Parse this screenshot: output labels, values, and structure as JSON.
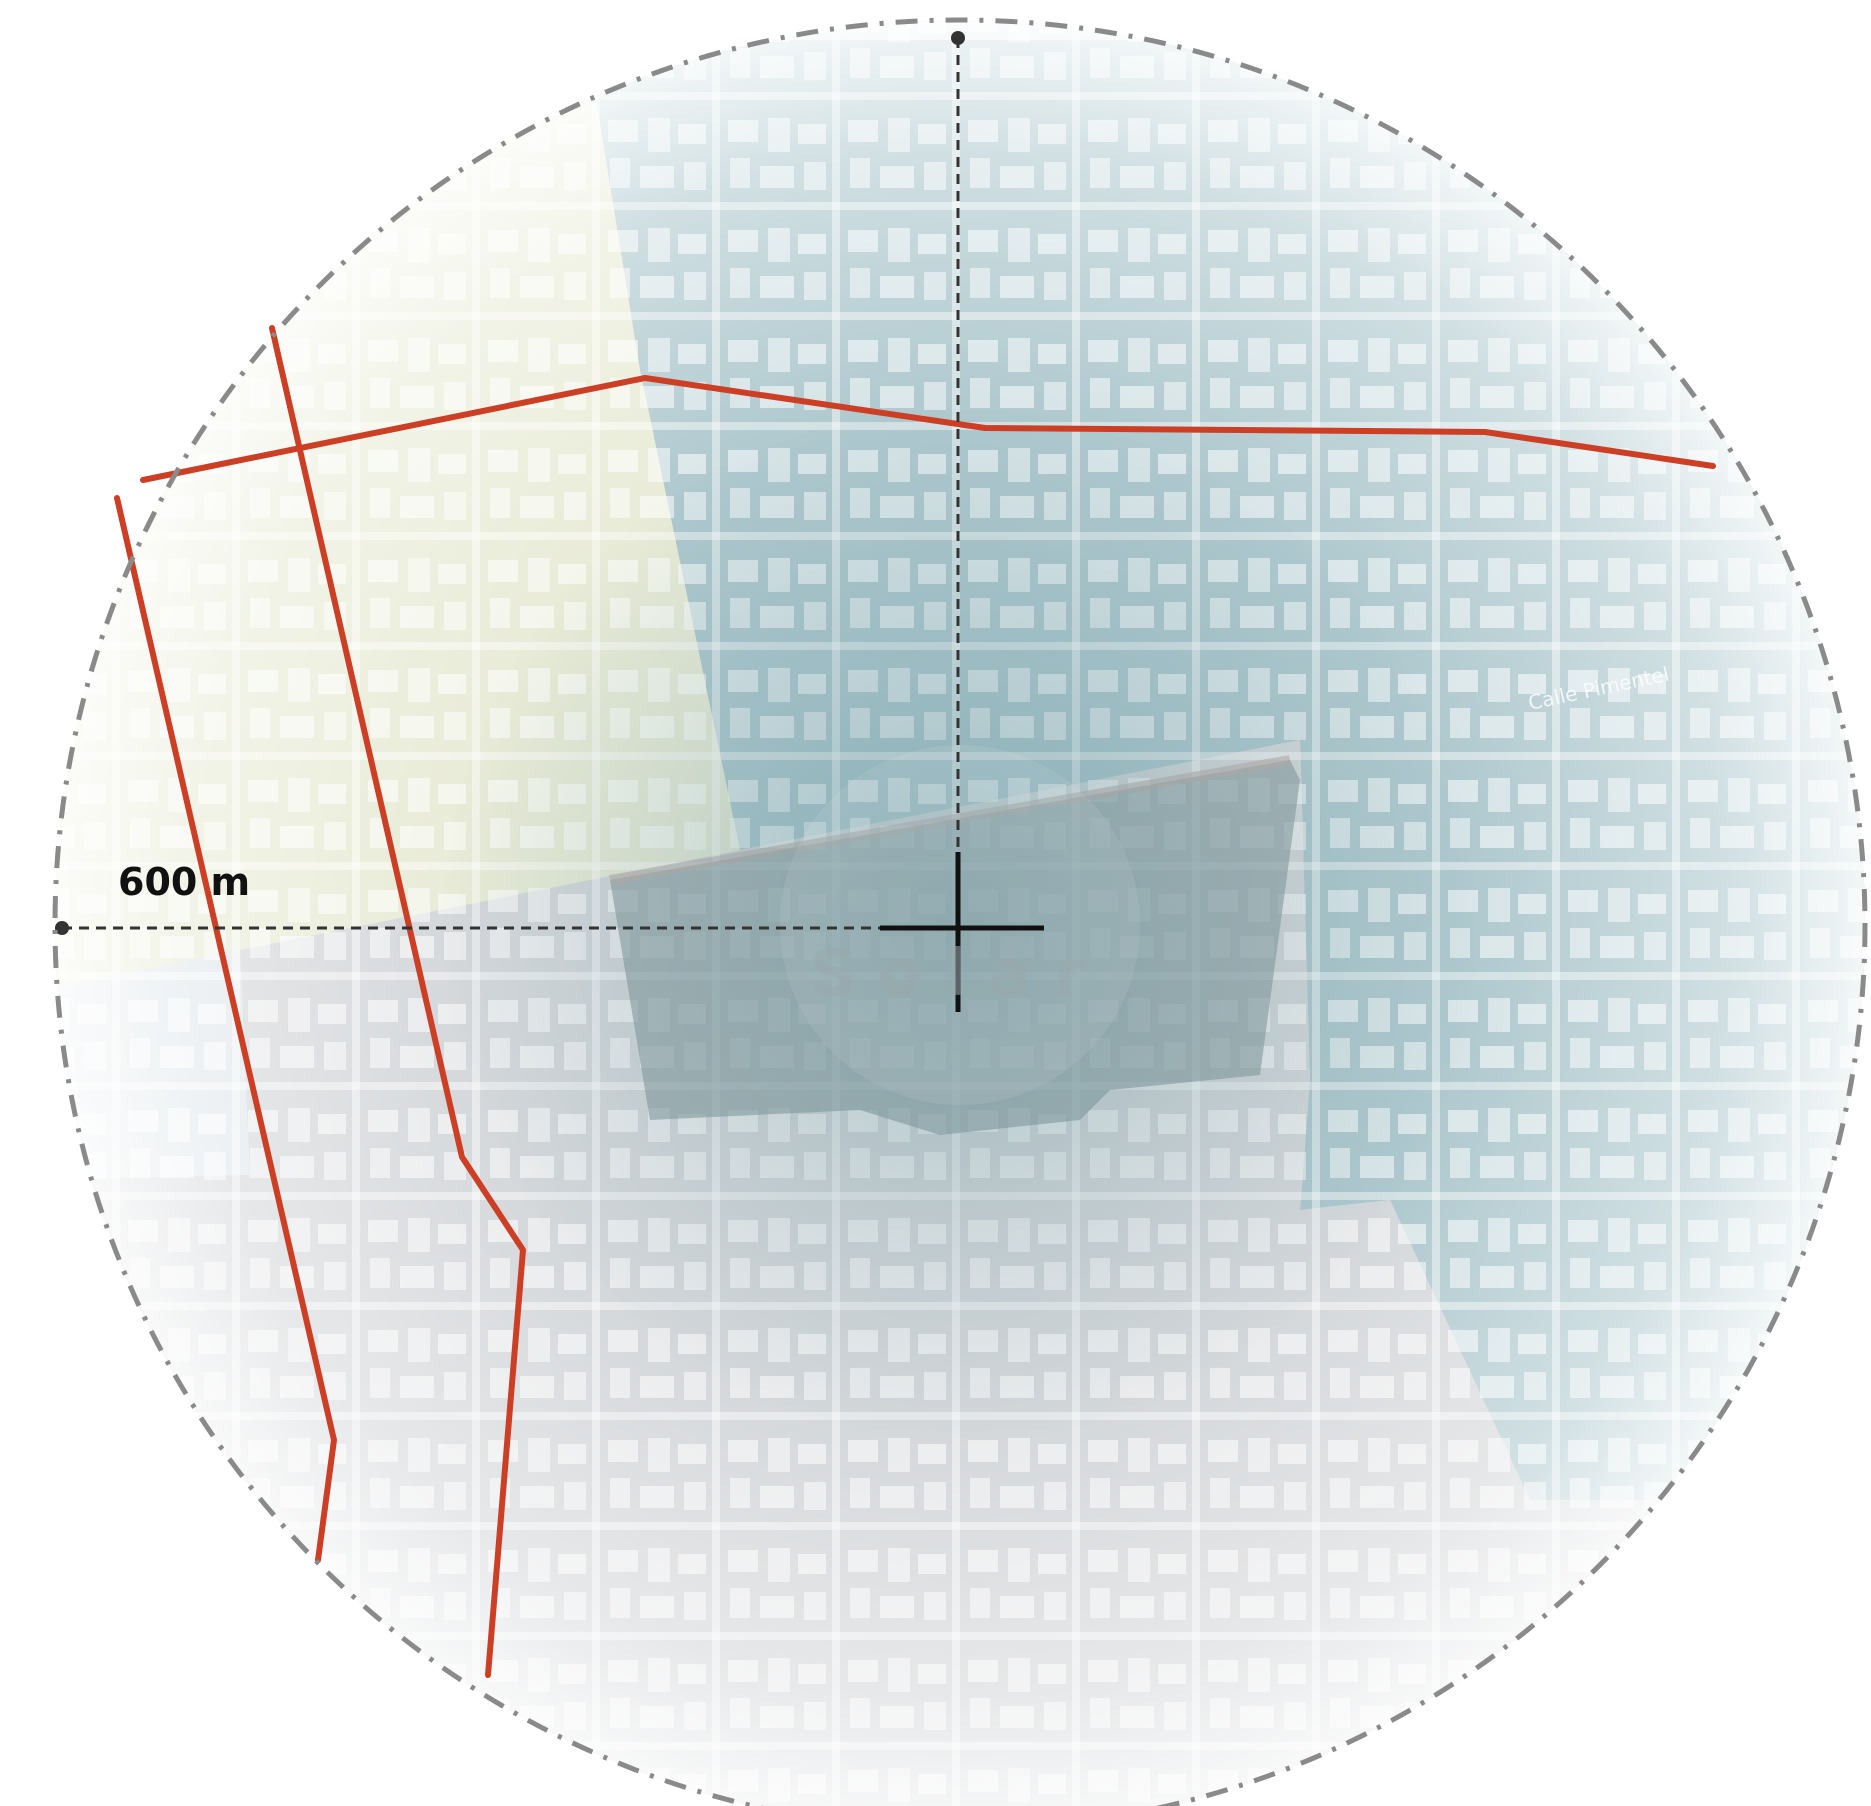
{
  "map": {
    "scale_label": "600 m",
    "site_label": "Solar",
    "street_label": "Calle Pimentel",
    "colors": {
      "road_red": "#cc3f25",
      "zone_teal": "#8fb3ba",
      "zone_grey": "#c9cccf",
      "zone_yellow": "#eef0d6",
      "zone_blue": "#dbe6f2",
      "site_fill": "#7f9296",
      "boundary_circle": "#8a8a8a",
      "crosshair": "#111111"
    },
    "icons": [
      "crosshair-icon",
      "radius-end-dot-icon"
    ]
  }
}
